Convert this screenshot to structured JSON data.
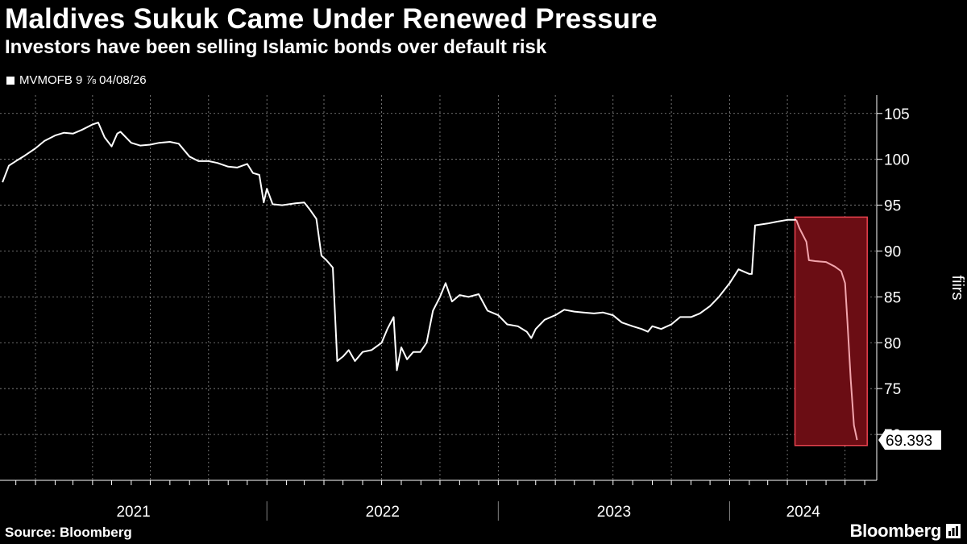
{
  "title": "Maldives Sukuk Came Under Renewed Pressure",
  "subtitle": "Investors have been selling Islamic bonds over default risk",
  "legend_label": "MVMOFB 9 ⅞ 04/08/26",
  "source": "Source: Bloomberg",
  "brand": "Bloomberg",
  "colors": {
    "background": "#000000",
    "line": "#ffffff",
    "highlight_fill": "#6b0d14",
    "highlight_stroke": "#e8424f",
    "highlight_line": "#f2a5ad",
    "grid": "#ffffff"
  },
  "chart_data": {
    "type": "line",
    "title": "Maldives Sukuk Came Under Renewed Pressure",
    "subtitle": "Investors have been selling Islamic bonds over default risk",
    "ylabel": "fiirs",
    "ylim": [
      65,
      107
    ],
    "yticks": [
      70,
      75,
      80,
      85,
      90,
      95,
      100,
      105
    ],
    "x_year_labels": [
      "2021",
      "2022",
      "2023",
      "2024"
    ],
    "grid": true,
    "last_value_label": "69.393",
    "series": [
      {
        "name": "MVMOFB 9 ⅞ 04/08/26",
        "points": [
          [
            "2020-11-10",
            97.5
          ],
          [
            "2020-11-20",
            99.3
          ],
          [
            "2020-12-01",
            99.8
          ],
          [
            "2020-12-15",
            100.4
          ],
          [
            "2021-01-01",
            101.2
          ],
          [
            "2021-01-15",
            102.0
          ],
          [
            "2021-02-01",
            102.6
          ],
          [
            "2021-02-15",
            102.9
          ],
          [
            "2021-03-01",
            102.8
          ],
          [
            "2021-03-15",
            103.2
          ],
          [
            "2021-04-01",
            103.8
          ],
          [
            "2021-04-10",
            104.0
          ],
          [
            "2021-04-20",
            102.4
          ],
          [
            "2021-05-01",
            101.4
          ],
          [
            "2021-05-10",
            102.8
          ],
          [
            "2021-05-15",
            103.0
          ],
          [
            "2021-06-01",
            101.8
          ],
          [
            "2021-06-15",
            101.5
          ],
          [
            "2021-07-01",
            101.6
          ],
          [
            "2021-07-15",
            101.8
          ],
          [
            "2021-08-01",
            101.9
          ],
          [
            "2021-08-15",
            101.7
          ],
          [
            "2021-09-01",
            100.3
          ],
          [
            "2021-09-15",
            99.8
          ],
          [
            "2021-10-01",
            99.8
          ],
          [
            "2021-10-15",
            99.6
          ],
          [
            "2021-11-01",
            99.2
          ],
          [
            "2021-11-15",
            99.1
          ],
          [
            "2021-12-01",
            99.5
          ],
          [
            "2021-12-10",
            98.5
          ],
          [
            "2021-12-20",
            98.3
          ],
          [
            "2021-12-27",
            95.3
          ],
          [
            "2022-01-01",
            96.8
          ],
          [
            "2022-01-10",
            95.1
          ],
          [
            "2022-01-25",
            95.0
          ],
          [
            "2022-02-15",
            95.2
          ],
          [
            "2022-03-01",
            95.3
          ],
          [
            "2022-03-10",
            94.5
          ],
          [
            "2022-03-20",
            93.5
          ],
          [
            "2022-03-28",
            89.5
          ],
          [
            "2022-04-05",
            89.0
          ],
          [
            "2022-04-15",
            88.2
          ],
          [
            "2022-04-22",
            78.0
          ],
          [
            "2022-05-01",
            78.5
          ],
          [
            "2022-05-10",
            79.2
          ],
          [
            "2022-05-20",
            78.0
          ],
          [
            "2022-06-01",
            79.0
          ],
          [
            "2022-06-15",
            79.2
          ],
          [
            "2022-07-01",
            80.0
          ],
          [
            "2022-07-10",
            81.5
          ],
          [
            "2022-07-20",
            82.8
          ],
          [
            "2022-07-25",
            77.0
          ],
          [
            "2022-08-01",
            79.5
          ],
          [
            "2022-08-10",
            78.2
          ],
          [
            "2022-08-20",
            79.0
          ],
          [
            "2022-08-31",
            79.0
          ],
          [
            "2022-09-10",
            80.0
          ],
          [
            "2022-09-20",
            83.5
          ],
          [
            "2022-10-01",
            85.0
          ],
          [
            "2022-10-10",
            86.5
          ],
          [
            "2022-10-20",
            84.5
          ],
          [
            "2022-11-01",
            85.2
          ],
          [
            "2022-11-15",
            85.0
          ],
          [
            "2022-12-01",
            85.3
          ],
          [
            "2022-12-15",
            83.5
          ],
          [
            "2023-01-01",
            83.0
          ],
          [
            "2023-01-15",
            82.0
          ],
          [
            "2023-02-01",
            81.8
          ],
          [
            "2023-02-15",
            81.2
          ],
          [
            "2023-02-22",
            80.5
          ],
          [
            "2023-03-01",
            81.5
          ],
          [
            "2023-03-15",
            82.5
          ],
          [
            "2023-04-01",
            83.0
          ],
          [
            "2023-04-15",
            83.6
          ],
          [
            "2023-05-01",
            83.4
          ],
          [
            "2023-05-15",
            83.3
          ],
          [
            "2023-06-01",
            83.2
          ],
          [
            "2023-06-15",
            83.3
          ],
          [
            "2023-07-01",
            83.0
          ],
          [
            "2023-07-15",
            82.2
          ],
          [
            "2023-08-01",
            81.8
          ],
          [
            "2023-08-15",
            81.5
          ],
          [
            "2023-08-25",
            81.2
          ],
          [
            "2023-09-01",
            81.8
          ],
          [
            "2023-09-15",
            81.5
          ],
          [
            "2023-10-01",
            82.0
          ],
          [
            "2023-10-15",
            82.8
          ],
          [
            "2023-11-01",
            82.8
          ],
          [
            "2023-11-15",
            83.2
          ],
          [
            "2023-12-01",
            84.0
          ],
          [
            "2023-12-15",
            85.0
          ],
          [
            "2024-01-01",
            86.5
          ],
          [
            "2024-01-15",
            88.0
          ],
          [
            "2024-02-01",
            87.5
          ],
          [
            "2024-02-05",
            87.5
          ],
          [
            "2024-02-10",
            92.8
          ],
          [
            "2024-03-01",
            93.0
          ],
          [
            "2024-03-15",
            93.2
          ],
          [
            "2024-04-01",
            93.4
          ],
          [
            "2024-04-15",
            93.4
          ]
        ]
      },
      {
        "name": "highlighted decline",
        "points": [
          [
            "2024-04-15",
            93.4
          ],
          [
            "2024-04-20",
            92.5
          ],
          [
            "2024-05-01",
            91.0
          ],
          [
            "2024-05-05",
            89.0
          ],
          [
            "2024-05-15",
            88.9
          ],
          [
            "2024-06-01",
            88.8
          ],
          [
            "2024-06-15",
            88.3
          ],
          [
            "2024-06-25",
            87.8
          ],
          [
            "2024-07-01",
            86.5
          ],
          [
            "2024-07-05",
            82.0
          ],
          [
            "2024-07-10",
            76.0
          ],
          [
            "2024-07-15",
            71.0
          ],
          [
            "2024-07-20",
            69.393
          ]
        ]
      }
    ],
    "highlight_region": {
      "x_start": "2024-04-13",
      "x_end": "2024-08-05",
      "y_min": 68.8,
      "y_max": 93.7
    }
  }
}
